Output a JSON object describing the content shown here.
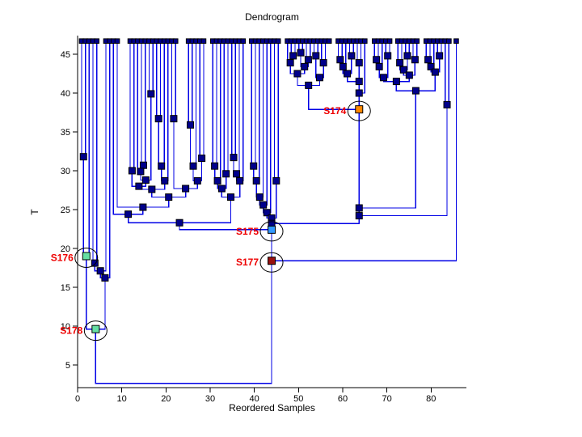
{
  "chart_data": {
    "type": "dendrogram",
    "orientation": "leaves-top-merging-down",
    "title": "Dendrogram",
    "xlabel": "Reordered Samples",
    "ylabel": "T",
    "xlim": [
      0,
      88
    ],
    "ylim": [
      2.06,
      47.4
    ],
    "xticks": [
      0,
      10,
      20,
      30,
      40,
      50,
      60,
      70,
      80
    ],
    "yticks": [
      5,
      10,
      15,
      20,
      25,
      30,
      35,
      40,
      45
    ],
    "grid": false,
    "leaf_height": 46.7,
    "leaves": [
      0.9,
      1.76,
      2.61,
      3.47,
      4.33,
      6.4,
      7.26,
      8.11,
      8.97,
      11.9,
      12.76,
      13.61,
      14.47,
      15.33,
      16.19,
      17.04,
      17.9,
      18.76,
      19.61,
      20.47,
      21.33,
      22.18,
      25.1,
      25.96,
      26.81,
      27.67,
      28.53,
      30.6,
      31.46,
      32.31,
      33.17,
      34.03,
      34.89,
      35.74,
      36.6,
      37.46,
      39.4,
      40.26,
      41.11,
      41.97,
      42.83,
      43.69,
      44.54,
      45.4,
      47.5,
      48.36,
      49.21,
      50.07,
      50.93,
      51.79,
      52.64,
      53.5,
      54.36,
      55.21,
      56.07,
      56.93,
      59.0,
      59.86,
      60.71,
      61.57,
      62.43,
      63.29,
      64.14,
      65.0,
      67.2,
      68.06,
      68.91,
      69.77,
      70.63,
      72.5,
      73.36,
      74.21,
      75.07,
      75.93,
      76.79,
      78.9,
      79.76,
      80.61,
      81.47,
      82.33,
      83.19,
      84.04,
      85.7
    ],
    "merges": [
      [
        0,
        1,
        31.8,
        "m"
      ],
      [
        83,
        2,
        19.0,
        "m"
      ],
      [
        3,
        4,
        18.1,
        "m"
      ],
      [
        85,
        5,
        17.1,
        "m"
      ],
      [
        86,
        6,
        16.2,
        "m"
      ],
      [
        84,
        87,
        9.6,
        "m"
      ],
      [
        14,
        15,
        39.9,
        "m"
      ],
      [
        12,
        13,
        30.7,
        "m"
      ],
      [
        90,
        11,
        29.9,
        "m"
      ],
      [
        91,
        89,
        28.8,
        "m"
      ],
      [
        9,
        10,
        30.0,
        "m"
      ],
      [
        93,
        92,
        28.0,
        "m"
      ],
      [
        16,
        17,
        36.7,
        "m"
      ],
      [
        95,
        18,
        30.6,
        "m"
      ],
      [
        96,
        19,
        28.7,
        "m"
      ],
      [
        94,
        97,
        27.6,
        "m"
      ],
      [
        20,
        21,
        36.7,
        "m"
      ],
      [
        22,
        23,
        35.9,
        "m"
      ],
      [
        100,
        24,
        30.6,
        "m"
      ],
      [
        25,
        26,
        31.6,
        "m"
      ],
      [
        101,
        102,
        28.7,
        "m"
      ],
      [
        99,
        103,
        27.7,
        "m"
      ],
      [
        98,
        104,
        26.6,
        "m"
      ],
      [
        105,
        8,
        25.3,
        "m"
      ],
      [
        106,
        7,
        24.4,
        "m"
      ],
      [
        27,
        28,
        30.6,
        "m"
      ],
      [
        108,
        29,
        28.7,
        "m"
      ],
      [
        30,
        31,
        29.6,
        "m"
      ],
      [
        109,
        110,
        27.7,
        "m"
      ],
      [
        32,
        33,
        31.7,
        "m"
      ],
      [
        112,
        34,
        29.6,
        "m"
      ],
      [
        113,
        35,
        28.7,
        "m"
      ],
      [
        111,
        114,
        26.6,
        "m"
      ],
      [
        107,
        115,
        23.3,
        "m"
      ],
      [
        36,
        37,
        30.6,
        "m"
      ],
      [
        117,
        38,
        28.7,
        "m"
      ],
      [
        118,
        39,
        26.6,
        "m"
      ],
      [
        119,
        40,
        25.6,
        "m"
      ],
      [
        120,
        41,
        24.6,
        "m"
      ],
      [
        42,
        43,
        28.7,
        "m"
      ],
      [
        121,
        122,
        23.9,
        "m"
      ],
      [
        45,
        46,
        44.8,
        "m"
      ],
      [
        124,
        44,
        43.9,
        "m"
      ],
      [
        47,
        48,
        45.2,
        "m"
      ],
      [
        49,
        50,
        44.3,
        "m"
      ],
      [
        126,
        127,
        43.4,
        "m"
      ],
      [
        125,
        128,
        42.5,
        "m"
      ],
      [
        51,
        52,
        44.8,
        "m"
      ],
      [
        53,
        54,
        43.9,
        "m"
      ],
      [
        130,
        131,
        42.0,
        "m"
      ],
      [
        129,
        132,
        41.0,
        "m"
      ],
      [
        56,
        57,
        44.3,
        "m"
      ],
      [
        134,
        58,
        43.4,
        "m"
      ],
      [
        59,
        60,
        44.8,
        "m"
      ],
      [
        135,
        136,
        42.5,
        "m"
      ],
      [
        61,
        62,
        43.9,
        "m"
      ],
      [
        137,
        138,
        41.5,
        "b"
      ],
      [
        139,
        63,
        40.0,
        "a"
      ],
      [
        140,
        133,
        37.9,
        "a"
      ],
      [
        64,
        65,
        44.3,
        "m"
      ],
      [
        142,
        66,
        43.4,
        "m"
      ],
      [
        67,
        68,
        44.8,
        "m"
      ],
      [
        143,
        144,
        42.0,
        "m"
      ],
      [
        69,
        70,
        43.9,
        "m"
      ],
      [
        71,
        72,
        44.8,
        "m"
      ],
      [
        146,
        147,
        43.0,
        "m"
      ],
      [
        73,
        74,
        44.3,
        "m"
      ],
      [
        148,
        149,
        42.3,
        "m"
      ],
      [
        75,
        76,
        44.3,
        "m"
      ],
      [
        151,
        77,
        43.4,
        "m"
      ],
      [
        78,
        79,
        44.8,
        "m"
      ],
      [
        152,
        153,
        42.7,
        "m"
      ],
      [
        80,
        81,
        38.5,
        "m"
      ],
      [
        145,
        150,
        41.5,
        "m"
      ],
      [
        156,
        154,
        40.3,
        "m"
      ],
      [
        141,
        157,
        25.2,
        "a"
      ],
      [
        158,
        155,
        24.2,
        "a"
      ],
      [
        123,
        159,
        23.2,
        "a"
      ],
      [
        116,
        160,
        22.4,
        "b"
      ],
      [
        161,
        82,
        18.4,
        "a"
      ],
      [
        88,
        162,
        2.6,
        "m"
      ]
    ],
    "root_no_marker": true,
    "highlights": [
      {
        "label": "S174",
        "node": 141,
        "color": "#FF8800"
      },
      {
        "label": "S175",
        "node": 161,
        "color": "#3399FF"
      },
      {
        "label": "S176",
        "node": 84,
        "color": "#66DFA4"
      },
      {
        "label": "S177",
        "node": 162,
        "color": "#991111"
      },
      {
        "label": "S178",
        "node": 88,
        "color": "#66DFA4"
      }
    ],
    "colors": {
      "line": "#0000E6",
      "marker": "#00008B",
      "marker_edge": "#000000",
      "highlight_label": "#EE0000",
      "highlight_ring": "#000000",
      "axis": "#000000"
    }
  }
}
